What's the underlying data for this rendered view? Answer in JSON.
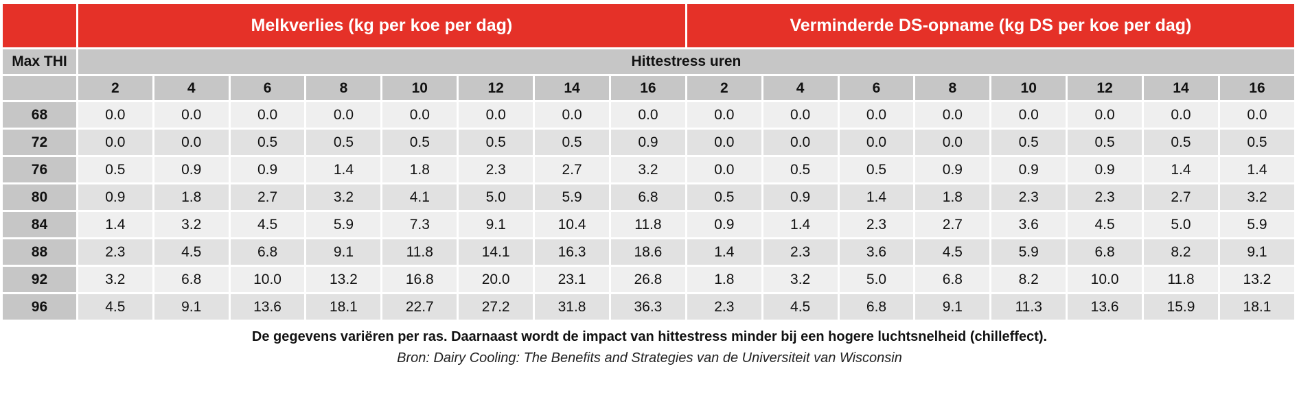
{
  "table": {
    "group_headers": [
      "Melkverlies (kg per koe per dag)",
      "Verminderde DS-opname (kg DS per koe per dag)"
    ],
    "row_header_label": "Max THI",
    "subheader": "Hittestress uren",
    "hours": [
      "2",
      "4",
      "6",
      "8",
      "10",
      "12",
      "14",
      "16",
      "2",
      "4",
      "6",
      "8",
      "10",
      "12",
      "14",
      "16"
    ],
    "rows": [
      {
        "thi": "68",
        "values": [
          "0.0",
          "0.0",
          "0.0",
          "0.0",
          "0.0",
          "0.0",
          "0.0",
          "0.0",
          "0.0",
          "0.0",
          "0.0",
          "0.0",
          "0.0",
          "0.0",
          "0.0",
          "0.0"
        ]
      },
      {
        "thi": "72",
        "values": [
          "0.0",
          "0.0",
          "0.5",
          "0.5",
          "0.5",
          "0.5",
          "0.5",
          "0.9",
          "0.0",
          "0.0",
          "0.0",
          "0.0",
          "0.5",
          "0.5",
          "0.5",
          "0.5"
        ]
      },
      {
        "thi": "76",
        "values": [
          "0.5",
          "0.9",
          "0.9",
          "1.4",
          "1.8",
          "2.3",
          "2.7",
          "3.2",
          "0.0",
          "0.5",
          "0.5",
          "0.9",
          "0.9",
          "0.9",
          "1.4",
          "1.4"
        ]
      },
      {
        "thi": "80",
        "values": [
          "0.9",
          "1.8",
          "2.7",
          "3.2",
          "4.1",
          "5.0",
          "5.9",
          "6.8",
          "0.5",
          "0.9",
          "1.4",
          "1.8",
          "2.3",
          "2.3",
          "2.7",
          "3.2"
        ]
      },
      {
        "thi": "84",
        "values": [
          "1.4",
          "3.2",
          "4.5",
          "5.9",
          "7.3",
          "9.1",
          "10.4",
          "11.8",
          "0.9",
          "1.4",
          "2.3",
          "2.7",
          "3.6",
          "4.5",
          "5.0",
          "5.9"
        ]
      },
      {
        "thi": "88",
        "values": [
          "2.3",
          "4.5",
          "6.8",
          "9.1",
          "11.8",
          "14.1",
          "16.3",
          "18.6",
          "1.4",
          "2.3",
          "3.6",
          "4.5",
          "5.9",
          "6.8",
          "8.2",
          "9.1"
        ]
      },
      {
        "thi": "92",
        "values": [
          "3.2",
          "6.8",
          "10.0",
          "13.2",
          "16.8",
          "20.0",
          "23.1",
          "26.8",
          "1.8",
          "3.2",
          "5.0",
          "6.8",
          "8.2",
          "10.0",
          "11.8",
          "13.2"
        ]
      },
      {
        "thi": "96",
        "values": [
          "4.5",
          "9.1",
          "13.6",
          "18.1",
          "22.7",
          "27.2",
          "31.8",
          "36.3",
          "2.3",
          "4.5",
          "6.8",
          "9.1",
          "11.3",
          "13.6",
          "15.9",
          "18.1"
        ]
      }
    ]
  },
  "note": "De gegevens variëren per ras. Daarnaast wordt de impact van hittestress minder bij een hogere luchtsnelheid (chilleffect).",
  "source": "Bron: Dairy Cooling: The Benefits and Strategies van de Universiteit van Wisconsin",
  "colors": {
    "header_red": "#e53128",
    "header_grey": "#c6c6c6",
    "row_light": "#efefef",
    "row_dark": "#e1e1e1"
  }
}
